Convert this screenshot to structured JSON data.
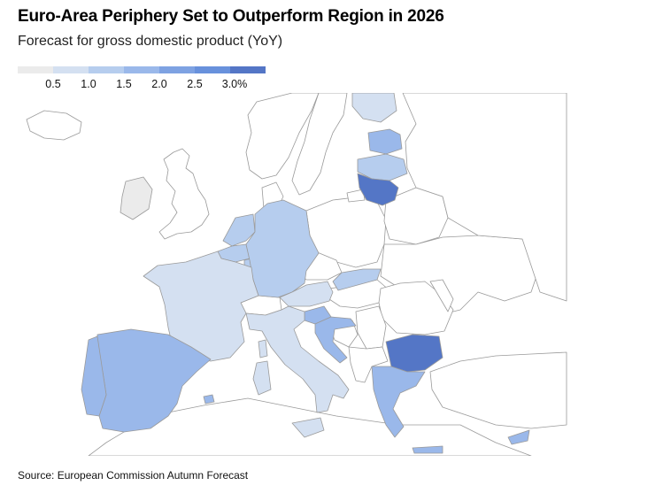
{
  "title": "Euro-Area Periphery Set to Outperform Region in 2026",
  "subtitle": "Forecast for gross domestic product (YoY)",
  "source": "Source: European Commission Autumn Forecast",
  "legend": {
    "colors": [
      "#ebebeb",
      "#d4e0f1",
      "#b6cdee",
      "#9ab8ea",
      "#7ea2e2",
      "#6891dc",
      "#5476c6"
    ],
    "labels": [
      "0.5",
      "1.0",
      "1.5",
      "2.0",
      "2.5",
      "3.0%"
    ]
  },
  "colors": {
    "non_euro": "#ffffff",
    "border": "#9a9a9a",
    "bin_0_0_5": "#ebebeb",
    "bin_1_0_1_5": "#d4e0f1",
    "bin_1_5_2_0": "#b6cdee",
    "bin_2_0_2_5": "#9ab8ea",
    "bin_2_5_3_0": "#6891dc",
    "bin_3_0_plus": "#5476c6"
  },
  "chart_data": {
    "type": "map",
    "title": "Euro-Area Periphery Set to Outperform Region in 2026",
    "subtitle": "Forecast for gross domestic product (YoY)",
    "legend_placement": "top-left",
    "legend_thresholds": [
      0.5,
      1.0,
      1.5,
      2.0,
      2.5,
      3.0
    ],
    "regions": [
      {
        "country": "Ireland",
        "bin": "0-0.5"
      },
      {
        "country": "France",
        "bin": "1.0-1.5"
      },
      {
        "country": "Italy",
        "bin": "1.0-1.5"
      },
      {
        "country": "Austria",
        "bin": "1.0-1.5"
      },
      {
        "country": "Finland",
        "bin": "1.0-1.5"
      },
      {
        "country": "Germany",
        "bin": "1.5-2.0"
      },
      {
        "country": "Netherlands",
        "bin": "1.5-2.0"
      },
      {
        "country": "Belgium",
        "bin": "1.5-2.0"
      },
      {
        "country": "Slovakia",
        "bin": "1.5-2.0"
      },
      {
        "country": "Latvia",
        "bin": "1.5-2.0"
      },
      {
        "country": "Spain",
        "bin": "2.0-2.5"
      },
      {
        "country": "Portugal",
        "bin": "2.0-2.5"
      },
      {
        "country": "Estonia",
        "bin": "2.0-2.5"
      },
      {
        "country": "Greece",
        "bin": "2.0-2.5"
      },
      {
        "country": "Slovenia",
        "bin": "2.0-2.5"
      },
      {
        "country": "Croatia",
        "bin": "2.0-2.5"
      },
      {
        "country": "Cyprus",
        "bin": "2.0-2.5"
      },
      {
        "country": "Lithuania",
        "bin": "3.0+"
      },
      {
        "country": "Bulgaria",
        "bin": "3.0+"
      }
    ]
  }
}
